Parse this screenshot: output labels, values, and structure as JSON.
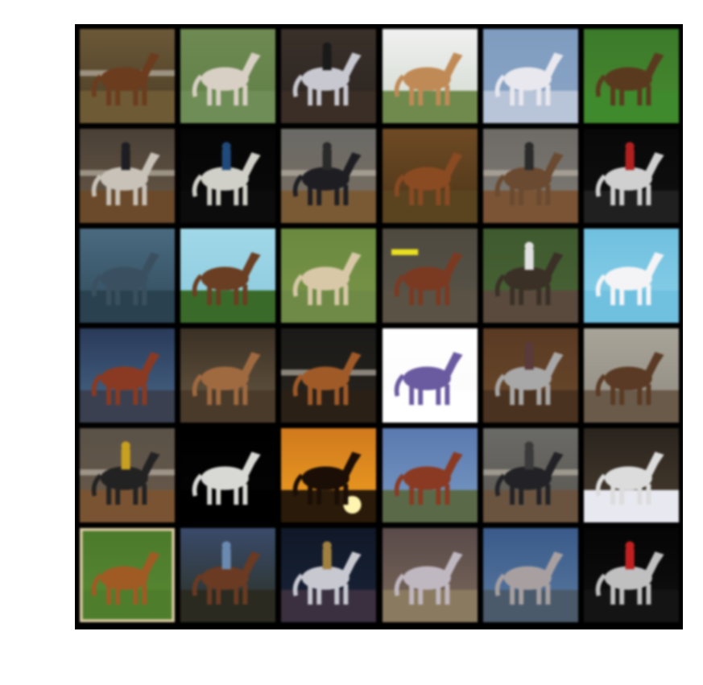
{
  "figure": {
    "rows": 6,
    "cols": 6,
    "background": "#ffffff",
    "grid_border": "#000000"
  },
  "tiles": [
    {
      "bg": [
        "#6b5838",
        "#4a3c24"
      ],
      "ground": "#6e5a34",
      "horse": "#6b3c1e",
      "rider": null,
      "extra": "arena"
    },
    {
      "bg": [
        "#6e8a52",
        "#5e7e46"
      ],
      "ground": "#6f8d56",
      "horse": "#d8d0c4",
      "rider": null,
      "extra": null
    },
    {
      "bg": [
        "#3a302a",
        "#2a2420"
      ],
      "ground": "#3a2e26",
      "horse": "#c8c8d0",
      "rider": "#1a1a1a",
      "extra": null
    },
    {
      "bg": [
        "#f0f0f0",
        "#cfd8cc"
      ],
      "ground": "#6f8a4c",
      "horse": "#c08a56",
      "rider": null,
      "extra": null
    },
    {
      "bg": [
        "#7f9cc0",
        "#8aa4c4"
      ],
      "ground": "#b8c4d8",
      "horse": "#e8e8ee",
      "rider": null,
      "extra": null
    },
    {
      "bg": [
        "#3a7a2a",
        "#4a8a30"
      ],
      "ground": "#3f8a2c",
      "horse": "#5a3a1e",
      "rider": null,
      "extra": null
    },
    {
      "bg": [
        "#4a4036",
        "#6a5a48"
      ],
      "ground": "#6a4a2a",
      "horse": "#c8c2b8",
      "rider": "#1e1e22",
      "extra": "arena"
    },
    {
      "bg": [
        "#050505",
        "#0a0a0a"
      ],
      "ground": "#0c0c0c",
      "horse": "#d0d0c8",
      "rider": "#204a7a",
      "extra": null
    },
    {
      "bg": [
        "#6a6a66",
        "#7a6e60"
      ],
      "ground": "#7a5a34",
      "horse": "#1e1e22",
      "rider": "#2a2a2a",
      "extra": "arena"
    },
    {
      "bg": [
        "#6e4a24",
        "#4a3418"
      ],
      "ground": "#5a4420",
      "horse": "#8a4a22",
      "rider": null,
      "extra": null
    },
    {
      "bg": [
        "#6e6a66",
        "#7e7a74"
      ],
      "ground": "#7a5434",
      "horse": "#6a4a30",
      "rider": "#2a2a2a",
      "extra": "arena"
    },
    {
      "bg": [
        "#080808",
        "#101010"
      ],
      "ground": "#202020",
      "horse": "#d0d0d0",
      "rider": "#b02020",
      "extra": null
    },
    {
      "bg": [
        "#4a6a80",
        "#304a5a"
      ],
      "ground": "#2a4250",
      "horse": "#3a5060",
      "rider": null,
      "extra": null
    },
    {
      "bg": [
        "#a0d8e8",
        "#8ac8dc"
      ],
      "ground": "#3a6a2a",
      "horse": "#6a3e22",
      "rider": null,
      "extra": null
    },
    {
      "bg": [
        "#6a8a40",
        "#7a9448"
      ],
      "ground": "#6e8a46",
      "horse": "#d8c8a8",
      "rider": null,
      "extra": null
    },
    {
      "bg": [
        "#4e4a40",
        "#5a5448"
      ],
      "ground": "#5a5244",
      "horse": "#7a3a22",
      "rider": null,
      "extra": "sign"
    },
    {
      "bg": [
        "#3e5a2e",
        "#4a6236"
      ],
      "ground": "#5a4a3e",
      "horse": "#3a3026",
      "rider": "#e0e0e0",
      "extra": null
    },
    {
      "bg": [
        "#70c0e0",
        "#8ad0e8"
      ],
      "ground": "#70c0e0",
      "horse": "#f4f4f6",
      "rider": null,
      "extra": null
    },
    {
      "bg": [
        "#2a3a5a",
        "#4a6a8a"
      ],
      "ground": "#3a4050",
      "horse": "#8a3a22",
      "rider": null,
      "extra": null
    },
    {
      "bg": [
        "#3a3024",
        "#6a5a44"
      ],
      "ground": "#4a3a2a",
      "horse": "#a06a40",
      "rider": null,
      "extra": null
    },
    {
      "bg": [
        "#1a1a18",
        "#2a241e"
      ],
      "ground": "#2a2016",
      "horse": "#a05a28",
      "rider": null,
      "extra": "arena"
    },
    {
      "bg": [
        "#ffffff",
        "#fafafa"
      ],
      "ground": "#ffffff",
      "horse": "#6a5aa0",
      "rider": null,
      "extra": null
    },
    {
      "bg": [
        "#5a3a22",
        "#6a4a2c"
      ],
      "ground": "#4a3220",
      "horse": "#a8a8a8",
      "rider": "#5a3a3a",
      "extra": null
    },
    {
      "bg": [
        "#a8a498",
        "#8e8a80"
      ],
      "ground": "#6a5a4a",
      "horse": "#5a3a24",
      "rider": null,
      "extra": null
    },
    {
      "bg": [
        "#5a5248",
        "#6a5a4a"
      ],
      "ground": "#7a5432",
      "horse": "#222222",
      "rider": "#c8a020",
      "extra": "arena"
    },
    {
      "bg": [
        "#000000",
        "#050505"
      ],
      "ground": "#000000",
      "horse": "#d8d8d4",
      "rider": null,
      "extra": null
    },
    {
      "bg": [
        "#d07a1e",
        "#f0a020"
      ],
      "ground": "#2a1a0a",
      "horse": "#1a0e06",
      "rider": null,
      "extra": "sun"
    },
    {
      "bg": [
        "#5a7ab0",
        "#7a9ac4"
      ],
      "ground": "#5a6a48",
      "horse": "#8a3a22",
      "rider": null,
      "extra": null
    },
    {
      "bg": [
        "#6a6a66",
        "#5a5650"
      ],
      "ground": "#6a5440",
      "horse": "#222226",
      "rider": "#3a3a3a",
      "extra": "arena"
    },
    {
      "bg": [
        "#2a241e",
        "#4a3e30"
      ],
      "ground": "#e8e8f0",
      "horse": "#dcdcdc",
      "rider": null,
      "extra": null
    },
    {
      "bg": [
        "#4a7a2a",
        "#5a8a34"
      ],
      "ground": "#4e7e2c",
      "horse": "#a05a24",
      "rider": null,
      "extra": "frame"
    },
    {
      "bg": [
        "#3a4a6a",
        "#2a3020"
      ],
      "ground": "#2a2a20",
      "horse": "#6a3a22",
      "rider": "#6a8ab0",
      "extra": null
    },
    {
      "bg": [
        "#101828",
        "#1a2438"
      ],
      "ground": "#3a3040",
      "horse": "#c8c8d0",
      "rider": "#a08040",
      "extra": null
    },
    {
      "bg": [
        "#5a4a4a",
        "#7a6a5a"
      ],
      "ground": "#8a7a60",
      "horse": "#c0b8c0",
      "rider": null,
      "extra": null
    },
    {
      "bg": [
        "#3a5a8a",
        "#5a7aa0"
      ],
      "ground": "#4a5a6a",
      "horse": "#a8a0a0",
      "rider": null,
      "extra": null
    },
    {
      "bg": [
        "#050505",
        "#101010"
      ],
      "ground": "#141414",
      "horse": "#c0c0c0",
      "rider": "#c02020",
      "extra": null
    }
  ]
}
